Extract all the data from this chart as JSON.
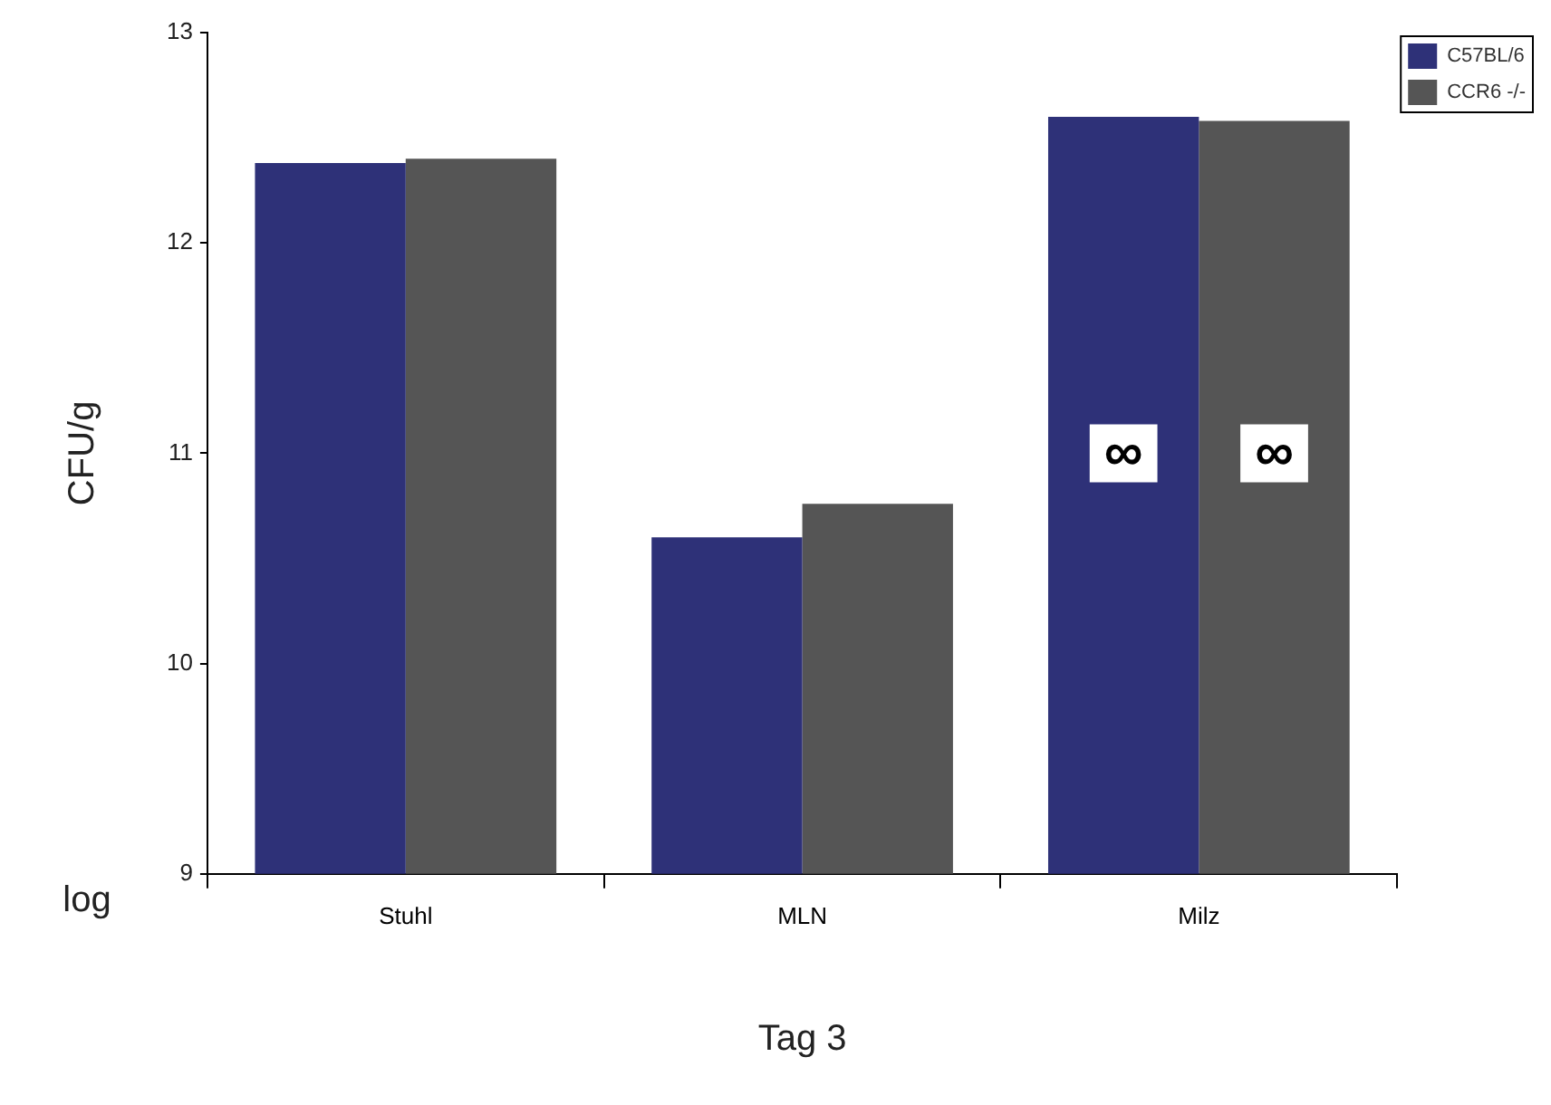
{
  "chart_data": {
    "type": "bar",
    "xlabel": "Tag 3",
    "ylabel": "CFU/g",
    "categories": [
      "Stuhl",
      "MLN",
      "Milz"
    ],
    "series": [
      {
        "name": "C57BL/6",
        "color": "#2e3178",
        "values": [
          12.38,
          10.6,
          12.6
        ]
      },
      {
        "name": "CCR6 -/-",
        "color": "#555555",
        "values": [
          12.4,
          10.76,
          12.58
        ]
      }
    ],
    "ylim": [
      9,
      13
    ],
    "yticks": [
      9,
      10,
      11,
      12,
      13
    ],
    "grid": false,
    "legend": "top right",
    "annotations": [
      {
        "text": "∞",
        "x": "Milz",
        "y": 11
      },
      {
        "text": "∞",
        "x": "Milz",
        "y": 11
      },
      "log"
    ]
  }
}
